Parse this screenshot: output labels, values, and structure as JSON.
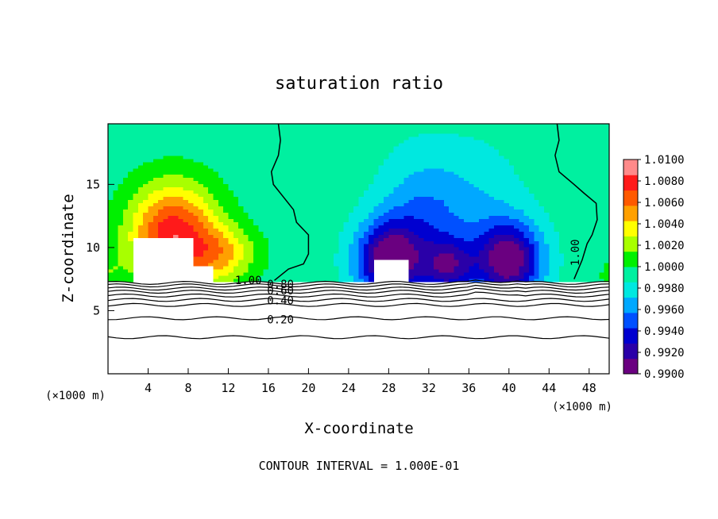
{
  "chart_data": {
    "type": "heatmap",
    "title": "saturation ratio",
    "xlabel": "X-coordinate",
    "ylabel": "Z-coordinate",
    "x_unit": "(×1000 m)",
    "footer": "CONTOUR INTERVAL = 1.000E-01",
    "xlim": [
      0,
      50
    ],
    "ylim": [
      0,
      19.8
    ],
    "x_ticks": [
      4,
      8,
      12,
      16,
      20,
      24,
      28,
      32,
      36,
      40,
      44,
      48
    ],
    "y_ticks": [
      5,
      10,
      15
    ],
    "colorbar": {
      "min": 0.99,
      "max": 1.01,
      "tick_values": [
        0.99,
        0.992,
        0.994,
        0.996,
        0.998,
        1.0,
        1.002,
        1.004,
        1.006,
        1.008,
        1.01
      ],
      "tick_labels": [
        "0.9900",
        "0.9920",
        "0.9940",
        "0.9960",
        "0.9980",
        "1.0000",
        "1.0020",
        "1.0040",
        "1.0060",
        "1.0080",
        "1.0100"
      ],
      "colors": [
        "#6a0080",
        "#2a00a8",
        "#0000d0",
        "#0050ff",
        "#00a8ff",
        "#00e8e0",
        "#00f0a0",
        "#00f000",
        "#a8ff00",
        "#ffff00",
        "#ffa000",
        "#ff5a00",
        "#ff1a1a",
        "#ff8a8a"
      ]
    },
    "contour_labels": [
      {
        "text": "1.00",
        "x": 14.0,
        "y": 7.1
      },
      {
        "text": "0.80",
        "x": 17.2,
        "y": 6.8
      },
      {
        "text": "0.60",
        "x": 17.2,
        "y": 6.3
      },
      {
        "text": "0.40",
        "x": 17.2,
        "y": 5.5
      },
      {
        "text": "0.20",
        "x": 17.2,
        "y": 4.0
      },
      {
        "text": "1.00",
        "x": 47.0,
        "y": 9.6
      }
    ],
    "cloud_base_z": 7.3
  }
}
